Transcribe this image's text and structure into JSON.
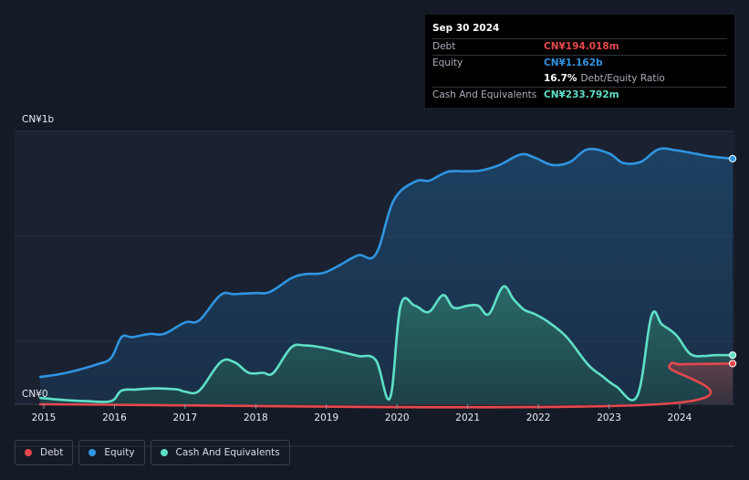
{
  "tooltip": {
    "date": "Sep 30 2024",
    "debt_label": "Debt",
    "debt_value": "CN¥194.018m",
    "equity_label": "Equity",
    "equity_value": "CN¥1.162b",
    "ratio_value": "16.7%",
    "ratio_label": "Debt/Equity Ratio",
    "cash_label": "Cash And Equivalents",
    "cash_value": "CN¥233.792m"
  },
  "colors": {
    "debt": "#e5484d",
    "equity": "#2f95e0",
    "cash": "#5fe0c8"
  },
  "legend": [
    {
      "name": "Debt",
      "color": "#e5484d"
    },
    {
      "name": "Equity",
      "color": "#2f95e0"
    },
    {
      "name": "Cash And Equivalents",
      "color": "#5fe0c8"
    }
  ],
  "chart_data": {
    "type": "area",
    "y_unit": "CN¥ billions",
    "ylim": [
      0,
      1.3
    ],
    "y_tick_labels": [
      {
        "value": 1.3,
        "label": "CN¥1b"
      },
      {
        "value": 0,
        "label": "CN¥0"
      }
    ],
    "xlim": [
      2014.95,
      2024.75
    ],
    "x_ticks": [
      2015,
      2016,
      2017,
      2018,
      2019,
      2020,
      2021,
      2022,
      2023,
      2024
    ],
    "x_tick_labels": [
      "2015",
      "2016",
      "2017",
      "2018",
      "2019",
      "2020",
      "2021",
      "2022",
      "2023",
      "2024"
    ],
    "grid": true,
    "legend_position": "bottom-left",
    "series": [
      {
        "name": "Equity",
        "x": [
          2014.95,
          2015.25,
          2015.5,
          2015.75,
          2015.95,
          2016.1,
          2016.25,
          2016.5,
          2016.7,
          2017.0,
          2017.2,
          2017.5,
          2017.7,
          2018.0,
          2018.2,
          2018.5,
          2018.7,
          2018.95,
          2019.2,
          2019.45,
          2019.7,
          2019.95,
          2020.25,
          2020.45,
          2020.6,
          2020.75,
          2021.0,
          2021.2,
          2021.45,
          2021.75,
          2021.95,
          2022.2,
          2022.45,
          2022.7,
          2023.0,
          2023.2,
          2023.45,
          2023.7,
          2023.95,
          2024.2,
          2024.45,
          2024.75
        ],
        "values": [
          0.13,
          0.145,
          0.165,
          0.19,
          0.22,
          0.32,
          0.32,
          0.335,
          0.335,
          0.39,
          0.4,
          0.52,
          0.525,
          0.53,
          0.535,
          0.6,
          0.62,
          0.625,
          0.665,
          0.71,
          0.715,
          0.97,
          1.06,
          1.065,
          1.09,
          1.11,
          1.11,
          1.115,
          1.14,
          1.19,
          1.175,
          1.14,
          1.155,
          1.215,
          1.195,
          1.15,
          1.155,
          1.215,
          1.21,
          1.195,
          1.18,
          1.17
        ]
      },
      {
        "name": "Cash And Equivalents",
        "x": [
          2014.95,
          2015.3,
          2015.6,
          2015.95,
          2016.1,
          2016.3,
          2016.5,
          2016.7,
          2016.9,
          2017.0,
          2017.2,
          2017.5,
          2017.7,
          2017.9,
          2018.1,
          2018.25,
          2018.5,
          2018.7,
          2018.95,
          2019.2,
          2019.45,
          2019.7,
          2019.9,
          2020.05,
          2020.25,
          2020.45,
          2020.65,
          2020.8,
          2021.0,
          2021.15,
          2021.3,
          2021.5,
          2021.65,
          2021.8,
          2021.95,
          2022.15,
          2022.4,
          2022.7,
          2022.9,
          2023.1,
          2023.4,
          2023.6,
          2023.75,
          2023.95,
          2024.15,
          2024.35,
          2024.5,
          2024.75
        ],
        "values": [
          0.03,
          0.02,
          0.015,
          0.015,
          0.065,
          0.07,
          0.075,
          0.075,
          0.07,
          0.06,
          0.065,
          0.2,
          0.2,
          0.15,
          0.15,
          0.15,
          0.27,
          0.28,
          0.27,
          0.25,
          0.23,
          0.21,
          0.03,
          0.47,
          0.47,
          0.44,
          0.52,
          0.46,
          0.47,
          0.47,
          0.43,
          0.56,
          0.5,
          0.45,
          0.43,
          0.39,
          0.32,
          0.19,
          0.135,
          0.085,
          0.04,
          0.42,
          0.38,
          0.33,
          0.24,
          0.23,
          0.234,
          0.234
        ]
      },
      {
        "name": "Debt",
        "x": [
          2014.95,
          2023.7,
          2023.85,
          2024.0,
          2024.3,
          2024.75
        ],
        "values": [
          0.0,
          0.0,
          0.18,
          0.19,
          0.192,
          0.194
        ]
      }
    ]
  }
}
